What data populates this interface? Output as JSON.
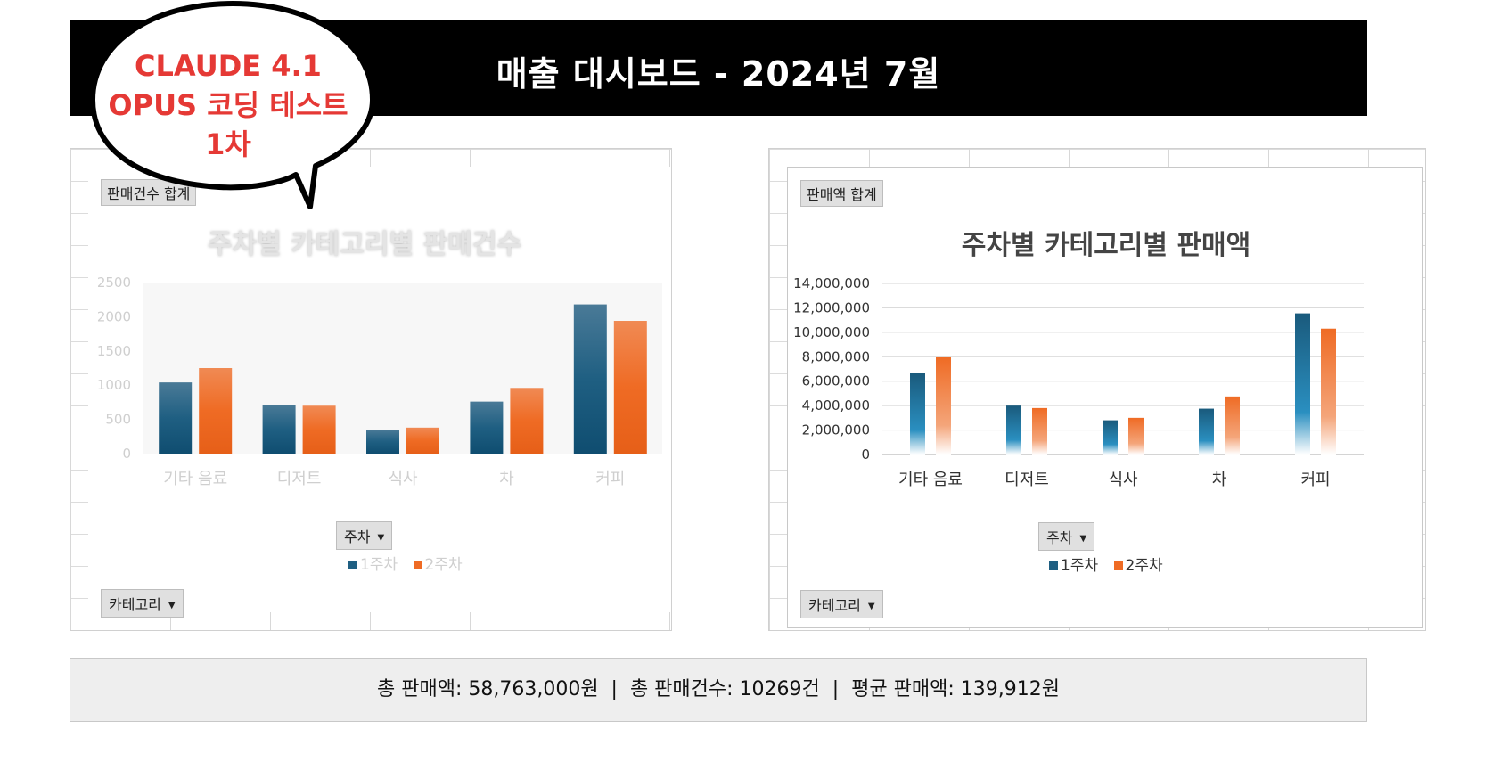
{
  "header": {
    "title": "매출 대시보드 - 2024년 7월"
  },
  "bubble": {
    "lines": [
      "CLAUDE 4.1",
      "OPUS 코딩 테스트",
      "1차"
    ]
  },
  "left_panel": {
    "field_tag": "판매건수 합계",
    "week_filter": "주차",
    "category_filter": "카테고리"
  },
  "right_panel": {
    "field_tag": "판매액 합계",
    "week_filter": "주차",
    "category_filter": "카테고리"
  },
  "summary": {
    "text": "총 판매액: 58,763,000원  |  총 판매건수: 10269건  |  평균 판매액: 139,912원"
  },
  "colors": {
    "series1": "#1f5f82",
    "series2": "#ef6b24",
    "muted_text": "#cfcfcf"
  },
  "chart_data": [
    {
      "type": "bar",
      "title": "주차별 카테고리별 판매건수",
      "categories": [
        "기타 음료",
        "디저트",
        "식사",
        "차",
        "커피"
      ],
      "series": [
        {
          "name": "1주차",
          "values": [
            1040,
            710,
            350,
            760,
            2180
          ]
        },
        {
          "name": "2주차",
          "values": [
            1250,
            700,
            380,
            960,
            1940
          ]
        }
      ],
      "yticks": [
        "0",
        "500",
        "1000",
        "1500",
        "2000",
        "2500"
      ],
      "ylim": [
        0,
        2500
      ],
      "legend": "bottom"
    },
    {
      "type": "bar",
      "title": "주차별 카테고리별 판매액",
      "categories": [
        "기타 음료",
        "디저트",
        "식사",
        "차",
        "커피"
      ],
      "series": [
        {
          "name": "1주차",
          "values": [
            6650000,
            4000000,
            2800000,
            3750000,
            11550000
          ]
        },
        {
          "name": "2주차",
          "values": [
            7950000,
            3800000,
            3000000,
            4750000,
            10300000
          ]
        }
      ],
      "yticks": [
        "0",
        "2,000,000",
        "4,000,000",
        "6,000,000",
        "8,000,000",
        "10,000,000",
        "12,000,000",
        "14,000,000"
      ],
      "ylim": [
        0,
        14000000
      ],
      "grid": true,
      "legend": "bottom"
    }
  ]
}
